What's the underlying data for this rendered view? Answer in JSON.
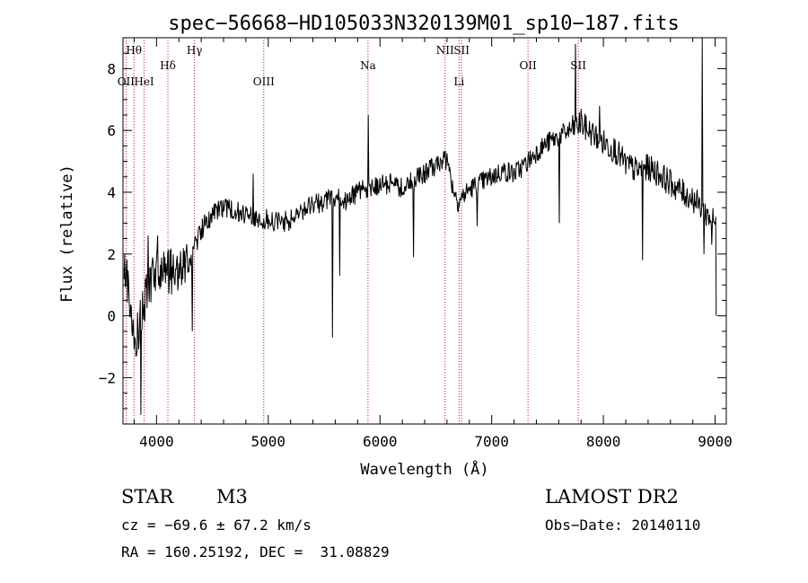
{
  "chart_data": {
    "type": "line",
    "title": "spec−56668−HD105033N320139M01_sp10−187.fits",
    "xlabel": "Wavelength (Å)",
    "ylabel": "Flux (relative)",
    "xlim": [
      3700,
      9100
    ],
    "ylim": [
      -3.5,
      9.0
    ],
    "x_ticks": [
      4000,
      5000,
      6000,
      7000,
      8000,
      9000
    ],
    "x_tick_labels": [
      "4000",
      "5000",
      "6000",
      "7000",
      "8000",
      "9000"
    ],
    "y_ticks": [
      -2,
      0,
      2,
      4,
      6,
      8
    ],
    "y_tick_labels": [
      "−2",
      "0",
      "2",
      "4",
      "6",
      "8"
    ],
    "grid": false,
    "line_color": "#000000",
    "marker_color": "#aa2222",
    "spectrum_continuum": {
      "x": [
        3700,
        3760,
        3800,
        3900,
        4000,
        4100,
        4200,
        4300,
        4400,
        4500,
        4600,
        4700,
        4800,
        4900,
        5000,
        5100,
        5200,
        5300,
        5400,
        5500,
        5600,
        5700,
        5800,
        5900,
        6000,
        6100,
        6200,
        6300,
        6400,
        6500,
        6560,
        6600,
        6650,
        6700,
        6800,
        6900,
        7000,
        7100,
        7200,
        7300,
        7400,
        7500,
        7600,
        7700,
        7800,
        7900,
        8000,
        8100,
        8200,
        8300,
        8400,
        8500,
        8600,
        8700,
        8800,
        8900,
        9000
      ],
      "y": [
        2.0,
        0.5,
        -1.0,
        0.5,
        1.5,
        1.4,
        1.5,
        1.8,
        2.8,
        3.3,
        3.5,
        3.4,
        3.2,
        3.2,
        3.1,
        3.0,
        3.1,
        3.4,
        3.6,
        3.7,
        3.8,
        3.7,
        4.0,
        4.1,
        4.2,
        4.3,
        4.1,
        4.4,
        4.6,
        4.9,
        5.1,
        5.0,
        4.2,
        3.7,
        4.1,
        4.3,
        4.5,
        4.7,
        4.6,
        4.9,
        5.3,
        5.6,
        5.8,
        6.0,
        6.2,
        5.9,
        5.6,
        5.4,
        4.9,
        4.7,
        4.8,
        4.6,
        4.3,
        4.0,
        3.8,
        3.4,
        3.0
      ]
    },
    "spectrum_spikes": [
      {
        "x": 3860,
        "y": -3.2
      },
      {
        "x": 3925,
        "y": 2.6
      },
      {
        "x": 4010,
        "y": 2.6
      },
      {
        "x": 4320,
        "y": -0.5
      },
      {
        "x": 4865,
        "y": 4.6
      },
      {
        "x": 5577,
        "y": -0.7
      },
      {
        "x": 5640,
        "y": 1.3
      },
      {
        "x": 5893,
        "y": 6.5
      },
      {
        "x": 6300,
        "y": 1.9
      },
      {
        "x": 6870,
        "y": 2.9
      },
      {
        "x": 7605,
        "y": 3.0
      },
      {
        "x": 7750,
        "y": 8.8
      },
      {
        "x": 7800,
        "y": 6.7
      },
      {
        "x": 7965,
        "y": 6.8
      },
      {
        "x": 8350,
        "y": 1.8
      },
      {
        "x": 8885,
        "y": 9.0
      },
      {
        "x": 8900,
        "y": 2.0
      },
      {
        "x": 8970,
        "y": 2.3
      },
      {
        "x": 9010,
        "y": 0.0
      }
    ],
    "line_markers": [
      {
        "name": "Hθ",
        "x": 3798,
        "row": 0
      },
      {
        "name": "OII",
        "x": 3727,
        "row": 2
      },
      {
        "name": "HeI",
        "x": 3889,
        "row": 2
      },
      {
        "name": "Hδ",
        "x": 4102,
        "row": 1
      },
      {
        "name": "Hγ",
        "x": 4340,
        "row": 0
      },
      {
        "name": "OIII",
        "x": 4960,
        "row": 2
      },
      {
        "name": "Na",
        "x": 5893,
        "row": 1
      },
      {
        "name": "NII",
        "x": 6583,
        "row": 0
      },
      {
        "name": "SII",
        "x": 6731,
        "row": 0
      },
      {
        "name": "Li",
        "x": 6708,
        "row": 2
      },
      {
        "name": "OII",
        "x": 7325,
        "row": 1
      },
      {
        "name": "SII",
        "x": 7775,
        "row": 1
      }
    ]
  },
  "info": {
    "object_type": "STAR",
    "subclass": "M3",
    "survey": "LAMOST DR2",
    "cz_line": "cz = −69.6 ± 67.2 km/s",
    "obs_date_line": "Obs−Date: 20140110",
    "radec_line": "RA = 160.25192, DEC =  31.08829"
  }
}
